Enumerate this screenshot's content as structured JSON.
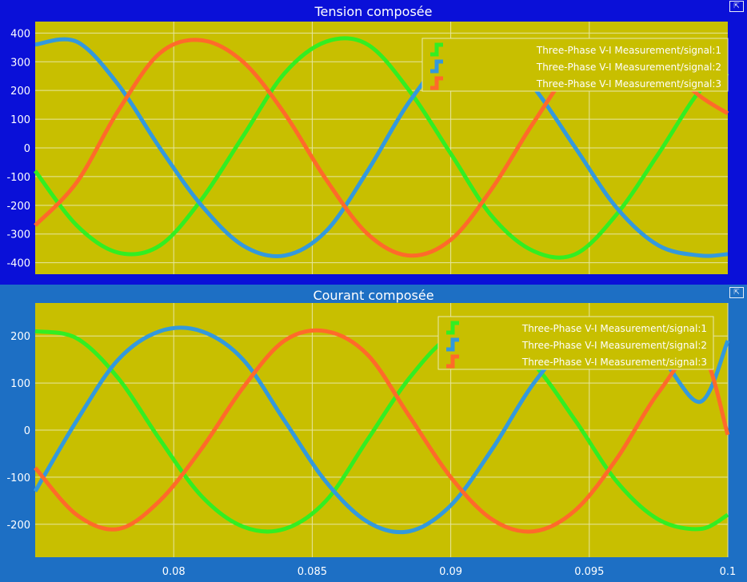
{
  "top": {
    "title": "Tension composée",
    "icon": "undock-icon",
    "legend": [
      "Three-Phase V-I Measurement/signal:1",
      "Three-Phase V-I Measurement/signal:2",
      "Three-Phase V-I Measurement/signal:3"
    ]
  },
  "bottom": {
    "title": "Courant composée",
    "icon": "undock-icon",
    "legend": [
      "Three-Phase V-I Measurement/signal:1",
      "Three-Phase V-I Measurement/signal:2",
      "Three-Phase V-I Measurement/signal:3"
    ]
  },
  "colors": {
    "plot_bg": "#c8bf00",
    "grid": "#e6e6a0",
    "signal1": "#33ee22",
    "signal2": "#3399dd",
    "signal3": "#ff6a2a",
    "top_bg": "#0a10d8",
    "bottom_bg": "#1d6fc4"
  },
  "chart_data": [
    {
      "type": "line",
      "title": "Tension composée",
      "xlim": [
        0.075,
        0.1
      ],
      "ylim": [
        -440,
        440
      ],
      "yticks": [
        -400,
        -300,
        -200,
        -100,
        0,
        100,
        200,
        300,
        400
      ],
      "grid": true,
      "legend_position": "top-right",
      "x": [
        0.075,
        0.0765,
        0.078,
        0.0795,
        0.081,
        0.0825,
        0.084,
        0.0855,
        0.087,
        0.0885,
        0.09,
        0.0915,
        0.093,
        0.0945,
        0.096,
        0.0975,
        0.099,
        0.1
      ],
      "series": [
        {
          "name": "Three-Phase V-I Measurement/signal:1",
          "color": "#33ee22",
          "values": [
            -80,
            -270,
            -365,
            -340,
            -180,
            40,
            260,
            370,
            360,
            200,
            -20,
            -240,
            -360,
            -370,
            -230,
            -20,
            200,
            260
          ]
        },
        {
          "name": "Three-Phase V-I Measurement/signal:2",
          "color": "#3399dd",
          "values": [
            360,
            370,
            220,
            0,
            -200,
            -340,
            -375,
            -290,
            -80,
            160,
            330,
            360,
            210,
            0,
            -210,
            -340,
            -375,
            -370
          ]
        },
        {
          "name": "Three-Phase V-I Measurement/signal:3",
          "color": "#ff6a2a",
          "values": [
            -270,
            -120,
            130,
            330,
            375,
            300,
            120,
            -110,
            -300,
            -375,
            -320,
            -140,
            90,
            290,
            360,
            300,
            180,
            120
          ]
        }
      ]
    },
    {
      "type": "line",
      "title": "Courant composée",
      "xlim": [
        0.075,
        0.1
      ],
      "ylim": [
        -270,
        270
      ],
      "yticks": [
        -200,
        -100,
        0,
        100,
        200
      ],
      "xticks": [
        0.08,
        0.085,
        0.09,
        0.095,
        0.1
      ],
      "xticklabels": [
        "0.08",
        "0.085",
        "0.09",
        "0.095",
        "0.1"
      ],
      "grid": true,
      "legend_position": "top-right",
      "x": [
        0.075,
        0.0765,
        0.078,
        0.0795,
        0.081,
        0.0825,
        0.084,
        0.0855,
        0.087,
        0.0885,
        0.09,
        0.0915,
        0.093,
        0.0945,
        0.096,
        0.0975,
        0.099,
        0.1
      ],
      "series": [
        {
          "name": "Three-Phase V-I Measurement/signal:1",
          "color": "#33ee22",
          "values": [
            210,
            195,
            110,
            -20,
            -140,
            -205,
            -210,
            -150,
            -20,
            110,
            200,
            210,
            140,
            20,
            -110,
            -190,
            -210,
            -180
          ]
        },
        {
          "name": "Three-Phase V-I Measurement/signal:2",
          "color": "#3399dd",
          "values": [
            -130,
            20,
            150,
            210,
            210,
            150,
            20,
            -110,
            -195,
            -215,
            -160,
            -40,
            100,
            195,
            210,
            160,
            60,
            190
          ]
        },
        {
          "name": "Three-Phase V-I Measurement/signal:3",
          "color": "#ff6a2a",
          "values": [
            -80,
            -180,
            -210,
            -150,
            -40,
            90,
            190,
            210,
            160,
            30,
            -100,
            -190,
            -215,
            -170,
            -60,
            80,
            170,
            -10
          ]
        }
      ]
    }
  ]
}
